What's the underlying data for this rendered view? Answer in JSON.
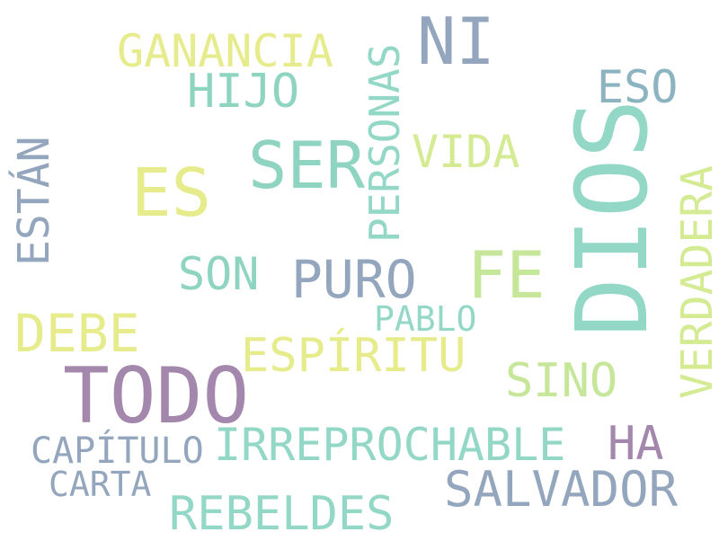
{
  "word_cloud": {
    "words": [
      {
        "text": "DIOS",
        "color": "#93d8c6"
      },
      {
        "text": "TODO",
        "color": "#a487ad"
      },
      {
        "text": "SER",
        "color": "#8fd4c1"
      },
      {
        "text": "ES",
        "color": "#e6ec8c"
      },
      {
        "text": "FE",
        "color": "#c6e69a"
      },
      {
        "text": "NI",
        "color": "#94a6bd"
      },
      {
        "text": "PURO",
        "color": "#94a6bd"
      },
      {
        "text": "DEBE",
        "color": "#e6ec8c"
      },
      {
        "text": "PERSONAS",
        "color": "#93d8c6"
      },
      {
        "text": "ESTÁN",
        "color": "#94a6bd"
      },
      {
        "text": "VERDADERA",
        "color": "#d4eb94"
      },
      {
        "text": "GANANCIA",
        "color": "#e6ec8c"
      },
      {
        "text": "HIJO",
        "color": "#8fd4c1"
      },
      {
        "text": "ESO",
        "color": "#8cb3c0"
      },
      {
        "text": "VIDA",
        "color": "#d4eb94"
      },
      {
        "text": "SON",
        "color": "#8fd4c1"
      },
      {
        "text": "PABLO",
        "color": "#93d8c6"
      },
      {
        "text": "ESPÍRITU",
        "color": "#e6ec8c"
      },
      {
        "text": "SINO",
        "color": "#c6e69a"
      },
      {
        "text": "IRREPROCHABLE",
        "color": "#93d8c6"
      },
      {
        "text": "HA",
        "color": "#a487ad"
      },
      {
        "text": "CAPÍTULO",
        "color": "#94a6bd"
      },
      {
        "text": "CARTA",
        "color": "#94a6bd"
      },
      {
        "text": "SALVADOR",
        "color": "#94a6bd"
      },
      {
        "text": "REBELDES",
        "color": "#93d8c6"
      }
    ]
  }
}
